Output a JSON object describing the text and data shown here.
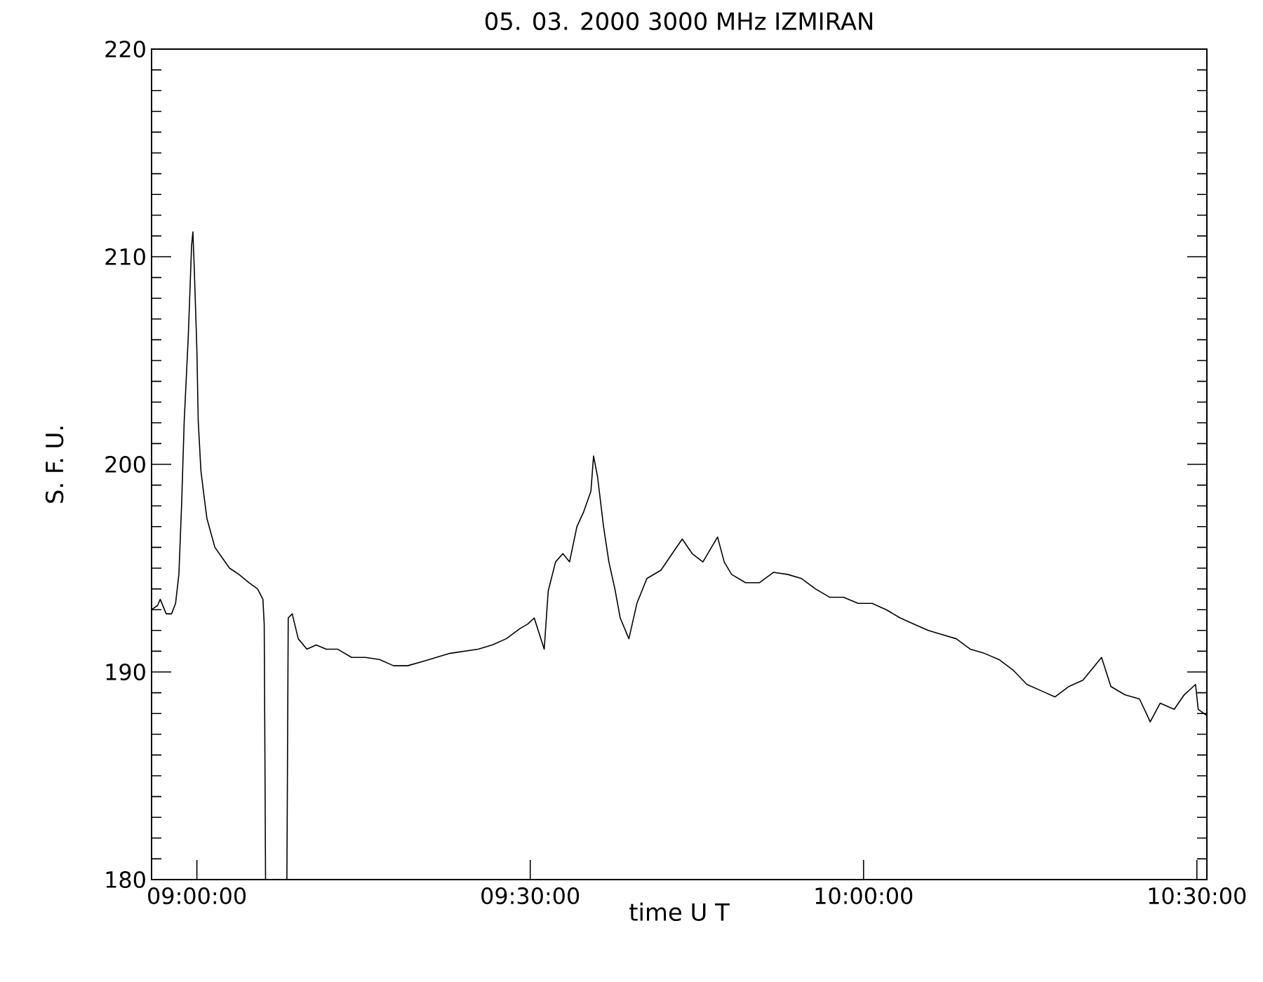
{
  "chart_data": {
    "type": "line",
    "title": "05.   03.   2000    3000 MHz    IZMIRAN",
    "xlabel": "time   U T",
    "ylabel": "S.  F.  U.",
    "xlim": [
      8.932,
      10.515
    ],
    "ylim": [
      180,
      220
    ],
    "xticks": [
      {
        "value": 9,
        "label": "09:00:00"
      },
      {
        "value": 9.5,
        "label": "09:30:00"
      },
      {
        "value": 10,
        "label": "10:00:00"
      },
      {
        "value": 10.5,
        "label": "10:30:00"
      }
    ],
    "yticks": [
      180,
      190,
      200,
      210,
      220
    ],
    "color": "#000000",
    "x": [
      8.932,
      8.941,
      8.945,
      8.954,
      8.962,
      8.968,
      8.973,
      8.977,
      8.981,
      8.987,
      8.992,
      8.994,
      8.996,
      9.0,
      9.002,
      9.006,
      9.011,
      9.015,
      9.021,
      9.027,
      9.038,
      9.049,
      9.063,
      9.078,
      9.091,
      9.099,
      9.101,
      9.103,
      9.135,
      9.137,
      9.143,
      9.152,
      9.165,
      9.179,
      9.194,
      9.211,
      9.232,
      9.253,
      9.274,
      9.295,
      9.316,
      9.338,
      9.359,
      9.38,
      9.401,
      9.422,
      9.443,
      9.464,
      9.485,
      9.496,
      9.506,
      9.521,
      9.527,
      9.538,
      9.549,
      9.559,
      9.57,
      9.58,
      9.591,
      9.595,
      9.601,
      9.61,
      9.618,
      9.627,
      9.635,
      9.648,
      9.66,
      9.675,
      9.696,
      9.713,
      9.728,
      9.743,
      9.759,
      9.781,
      9.791,
      9.802,
      9.823,
      9.844,
      9.865,
      9.886,
      9.907,
      9.928,
      9.949,
      9.97,
      9.992,
      10.013,
      10.034,
      10.055,
      10.076,
      10.097,
      10.118,
      10.139,
      10.16,
      10.181,
      10.203,
      10.224,
      10.245,
      10.266,
      10.287,
      10.308,
      10.329,
      10.357,
      10.371,
      10.392,
      10.414,
      10.43,
      10.445,
      10.466,
      10.481,
      10.498,
      10.502,
      10.515
    ],
    "values": [
      193.0,
      193.2,
      193.5,
      192.8,
      192.8,
      193.3,
      194.7,
      198.0,
      202.1,
      206.1,
      210.5,
      211.2,
      209.5,
      205.5,
      202.1,
      199.7,
      198.4,
      197.4,
      196.7,
      196.0,
      195.5,
      195.0,
      194.7,
      194.3,
      194.0,
      193.5,
      192.3,
      180,
      180,
      192.6,
      192.8,
      191.6,
      191.1,
      191.3,
      191.1,
      191.1,
      190.7,
      190.7,
      190.6,
      190.3,
      190.3,
      190.5,
      190.7,
      190.9,
      191.0,
      191.1,
      191.3,
      191.6,
      192.1,
      192.3,
      192.6,
      191.1,
      193.9,
      195.3,
      195.7,
      195.3,
      197.0,
      197.7,
      198.7,
      200.4,
      199.4,
      197.0,
      195.3,
      194.0,
      192.6,
      191.6,
      193.3,
      194.5,
      194.9,
      195.7,
      196.4,
      195.7,
      195.3,
      196.5,
      195.3,
      194.7,
      194.3,
      194.3,
      194.8,
      194.7,
      194.5,
      194.0,
      193.6,
      193.6,
      193.3,
      193.3,
      193.0,
      192.6,
      192.3,
      192.0,
      191.8,
      191.6,
      191.1,
      190.9,
      190.6,
      190.1,
      189.4,
      189.1,
      188.8,
      189.3,
      189.6,
      190.7,
      189.3,
      188.9,
      188.7,
      187.6,
      188.5,
      188.2,
      188.9,
      189.4,
      188.2,
      187.9
    ]
  }
}
